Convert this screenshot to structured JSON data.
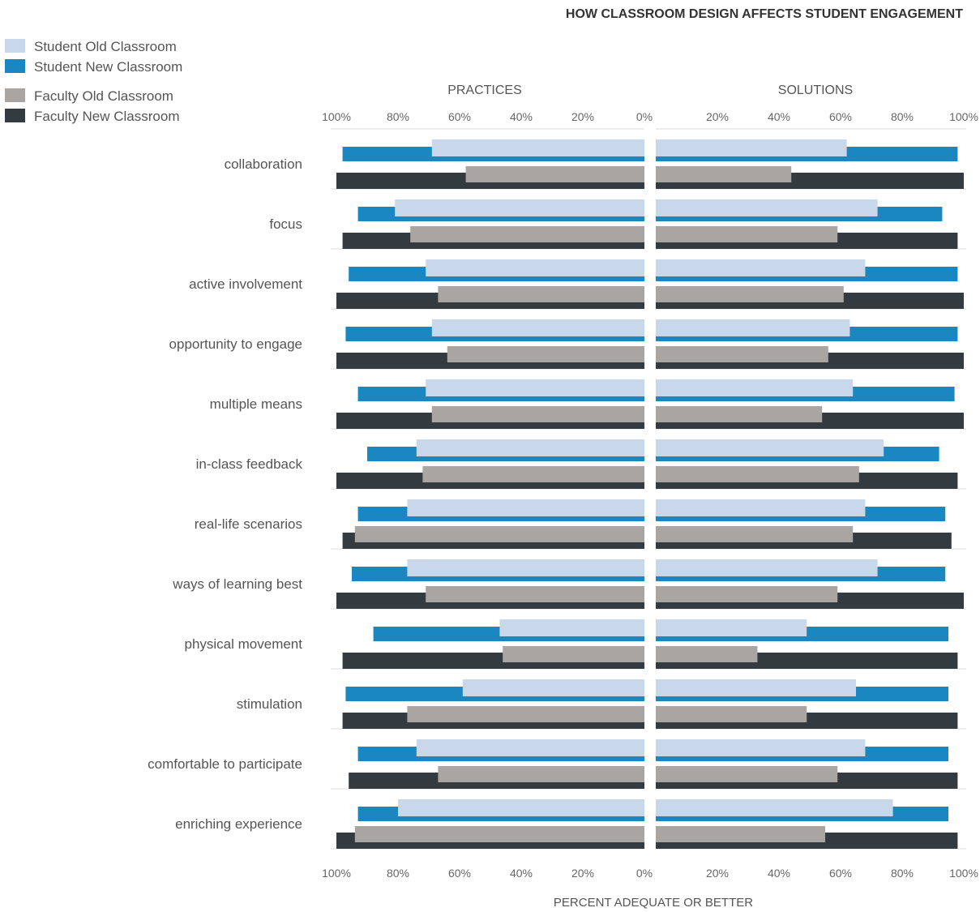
{
  "chart_data": {
    "type": "bar",
    "title": "HOW CLASSROOM DESIGN AFFECTS STUDENT ENGAGEMENT",
    "xlabel": "PERCENT ADEQUATE OR BETTER",
    "panels": [
      "PRACTICES",
      "SOLUTIONS"
    ],
    "xlim": [
      0,
      100
    ],
    "tick_labels": [
      "100%",
      "80%",
      "60%",
      "40%",
      "20%",
      "0%",
      "20%",
      "40%",
      "60%",
      "80%",
      "100%"
    ],
    "categories": [
      "collaboration",
      "focus",
      "active involvement",
      "opportunity to engage",
      "multiple means",
      "in-class feedback",
      "real-life scenarios",
      "ways of learning best",
      "physical movement",
      "stimulation",
      "comfortable to participate",
      "enriching experience"
    ],
    "legend_position": "top-left",
    "series": [
      {
        "name": "Student Old Classroom",
        "color": "#c8d7ea",
        "practices": [
          69,
          81,
          71,
          69,
          71,
          74,
          77,
          77,
          47,
          59,
          74,
          80
        ],
        "solutions": [
          62,
          72,
          68,
          63,
          64,
          74,
          68,
          72,
          49,
          65,
          68,
          77
        ]
      },
      {
        "name": "Student New Classroom",
        "color": "#1a87c0",
        "practices": [
          98,
          93,
          96,
          97,
          93,
          90,
          93,
          95,
          88,
          97,
          93,
          93
        ],
        "solutions": [
          98,
          93,
          98,
          98,
          97,
          92,
          94,
          94,
          95,
          95,
          95,
          95
        ]
      },
      {
        "name": "Faculty Old Classroom",
        "color": "#a8a5a2",
        "practices": [
          58,
          76,
          67,
          64,
          69,
          72,
          94,
          71,
          46,
          77,
          67,
          94
        ],
        "solutions": [
          44,
          59,
          61,
          56,
          54,
          66,
          64,
          59,
          33,
          49,
          59,
          55
        ]
      },
      {
        "name": "Faculty New Classroom",
        "color": "#333a40",
        "practices": [
          100,
          98,
          100,
          100,
          100,
          100,
          98,
          100,
          98,
          98,
          96,
          100
        ],
        "solutions": [
          100,
          98,
          100,
          100,
          100,
          98,
          96,
          100,
          98,
          98,
          98,
          98
        ]
      }
    ]
  }
}
